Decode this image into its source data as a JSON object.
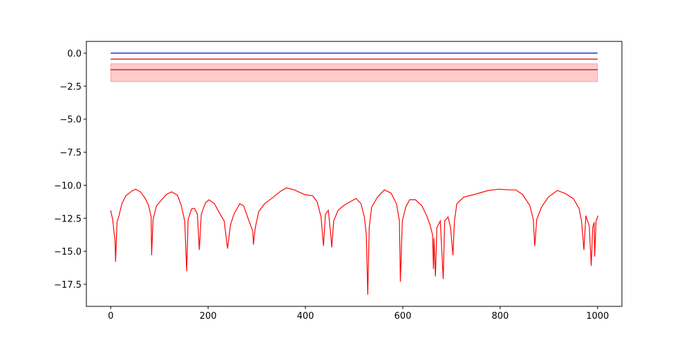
{
  "chart_data": {
    "type": "line",
    "xlim": [
      -50,
      1050
    ],
    "ylim": [
      -19.17,
      0.89
    ],
    "xticks": [
      0,
      200,
      400,
      600,
      800,
      1000
    ],
    "yticks": [
      {
        "value": 0,
        "label": "0.0"
      },
      {
        "value": -2.5,
        "label": "−2.5"
      },
      {
        "value": -5,
        "label": "−5.0"
      },
      {
        "value": -7.5,
        "label": "−7.5"
      },
      {
        "value": -10,
        "label": "−10.0"
      },
      {
        "value": -12.5,
        "label": "−12.5"
      },
      {
        "value": -15,
        "label": "−15.0"
      },
      {
        "value": -17.5,
        "label": "−17.5"
      }
    ],
    "band": {
      "color": "#ff0000",
      "x": [
        0,
        1000
      ],
      "lower": [
        -2.15,
        -2.15
      ],
      "upper": [
        -0.8,
        -0.8
      ]
    },
    "series": [
      {
        "color": "#0000cc",
        "x": [
          0,
          1000
        ],
        "values": [
          0,
          0
        ]
      },
      {
        "color": "#cc0000",
        "x": [
          0,
          1000
        ],
        "values": [
          -0.45,
          -0.45
        ]
      },
      {
        "color": "#cc0000",
        "x": [
          0,
          1000
        ],
        "values": [
          -1.25,
          -1.25
        ]
      },
      {
        "color": "#ff0000",
        "x": [
          0,
          4,
          9,
          10,
          13,
          17,
          23,
          31,
          43,
          51,
          61,
          71,
          78,
          83,
          84,
          87,
          94,
          105,
          114,
          125,
          137,
          145,
          152,
          156,
          159,
          166,
          172,
          178,
          182,
          186,
          195,
          202,
          213,
          228,
          233,
          240,
          246,
          253,
          265,
          273,
          284,
          292,
          293,
          297,
          304,
          316,
          334,
          349,
          361,
          377,
          398,
          415,
          424,
          432,
          437,
          441,
          447,
          452,
          454,
          458,
          467,
          478,
          492,
          504,
          514,
          521,
          525,
          528,
          531,
          536,
          548,
          562,
          576,
          587,
          593,
          595,
          599,
          606,
          614,
          626,
          639,
          649,
          656,
          661,
          663,
          664,
          667,
          670,
          677,
          683,
          686,
          693,
          698,
          703,
          706,
          711,
          725,
          747,
          775,
          797,
          818,
          832,
          846,
          861,
          868,
          871,
          875,
          885,
          899,
          917,
          932,
          950,
          962,
          967,
          972,
          976,
          983,
          987,
          990,
          993,
          994,
          997,
          1001
        ],
        "values": [
          -11.9,
          -12.6,
          -14.3,
          -15.8,
          -12.8,
          -12.3,
          -11.4,
          -10.8,
          -10.45,
          -10.3,
          -10.5,
          -11.0,
          -11.55,
          -12.4,
          -15.3,
          -12.6,
          -11.55,
          -11.1,
          -10.7,
          -10.5,
          -10.75,
          -11.55,
          -12.7,
          -16.5,
          -12.6,
          -11.8,
          -11.75,
          -12.2,
          -14.9,
          -12.2,
          -11.3,
          -11.1,
          -11.4,
          -12.4,
          -12.7,
          -14.8,
          -13.0,
          -12.2,
          -11.4,
          -11.55,
          -12.7,
          -13.5,
          -14.5,
          -13.2,
          -12.0,
          -11.4,
          -10.9,
          -10.45,
          -10.2,
          -10.35,
          -10.7,
          -10.8,
          -11.25,
          -12.4,
          -14.6,
          -12.2,
          -11.9,
          -13.75,
          -14.7,
          -12.7,
          -11.9,
          -11.55,
          -11.25,
          -11.0,
          -11.4,
          -12.4,
          -13.75,
          -18.3,
          -13.2,
          -11.65,
          -10.9,
          -10.35,
          -10.6,
          -11.4,
          -12.7,
          -17.3,
          -12.7,
          -11.65,
          -11.1,
          -11.1,
          -11.55,
          -12.3,
          -13.0,
          -13.75,
          -16.35,
          -14.0,
          -16.9,
          -13.2,
          -12.7,
          -17.1,
          -12.7,
          -12.4,
          -13.2,
          -15.3,
          -12.7,
          -11.4,
          -10.9,
          -10.7,
          -10.4,
          -10.3,
          -10.35,
          -10.35,
          -10.7,
          -11.55,
          -12.6,
          -14.6,
          -12.6,
          -11.65,
          -10.9,
          -10.4,
          -10.6,
          -11.0,
          -11.75,
          -12.7,
          -14.9,
          -12.3,
          -13.1,
          -16.1,
          -13.2,
          -12.8,
          -15.4,
          -12.7,
          -12.3
        ]
      }
    ]
  }
}
